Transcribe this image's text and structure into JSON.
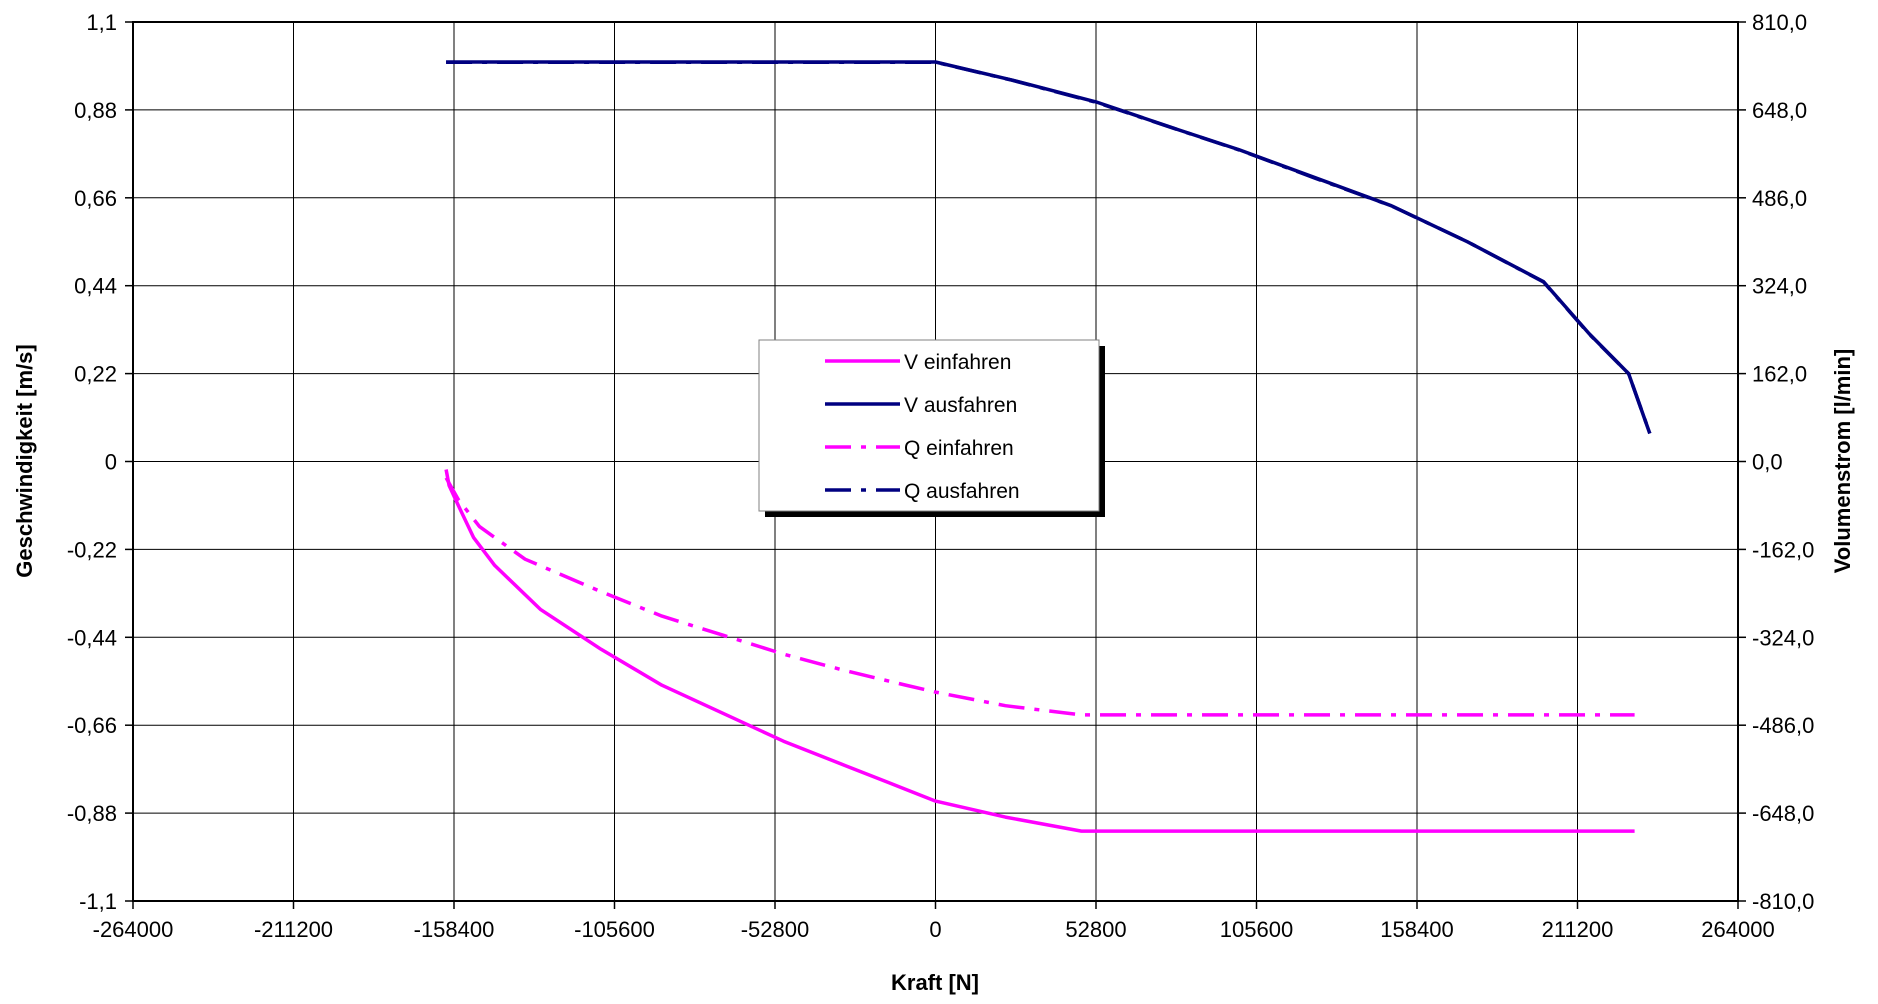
{
  "chart_data": {
    "type": "line",
    "xlabel": "Kraft [N]",
    "ylabel": "Geschwindigkeit [m/s]",
    "y2label": "Volumenstrom [l/min]",
    "xlim": [
      -264000,
      264000
    ],
    "ylim": [
      -1.1,
      1.1
    ],
    "y2lim": [
      -810,
      810
    ],
    "grid": true,
    "legend_position": "center",
    "x_ticks": [
      "-264000",
      "-211200",
      "-158400",
      "-105600",
      "-52800",
      "0",
      "52800",
      "105600",
      "158400",
      "211200",
      "264000"
    ],
    "y_ticks": [
      "1,1",
      "0,88",
      "0,66",
      "0,44",
      "0,22",
      "0",
      "-0,22",
      "-0,44",
      "-0,66",
      "-0,88",
      "-1,1"
    ],
    "y2_ticks": [
      "810,0",
      "648,0",
      "486,0",
      "324,0",
      "162,0",
      "0,0",
      "-162,0",
      "-324,0",
      "-486,0",
      "-648,0",
      "-810,0"
    ],
    "series": [
      {
        "name": "V einfahren",
        "axis": "left",
        "color": "#ff00ff",
        "style": "solid",
        "x": [
          -161000,
          -160000,
          -157000,
          -152000,
          -145000,
          -130000,
          -110000,
          -90000,
          -70000,
          -50000,
          -30000,
          -10000,
          0,
          23000,
          48000,
          70000,
          100000,
          140000,
          180000,
          220000,
          230000
        ],
        "y": [
          -0.02,
          -0.06,
          -0.11,
          -0.19,
          -0.26,
          -0.37,
          -0.47,
          -0.56,
          -0.63,
          -0.7,
          -0.76,
          -0.82,
          -0.85,
          -0.89,
          -0.925,
          -0.925,
          -0.925,
          -0.925,
          -0.925,
          -0.925,
          -0.925
        ]
      },
      {
        "name": "V ausfahren",
        "axis": "left",
        "color": "#000080",
        "style": "solid",
        "x": [
          -161000,
          -100000,
          -50000,
          0,
          25000,
          52800,
          80000,
          100000,
          125000,
          150000,
          175000,
          200000,
          215000,
          228000,
          235000
        ],
        "y": [
          1.0,
          1.0,
          1.0,
          1.0,
          0.955,
          0.9,
          0.83,
          0.78,
          0.71,
          0.64,
          0.55,
          0.45,
          0.32,
          0.22,
          0.07
        ]
      },
      {
        "name": "Q einfahren",
        "axis": "right",
        "color": "#ff00ff",
        "style": "dashdot",
        "x": [
          -161000,
          -157000,
          -150000,
          -135000,
          -110000,
          -90000,
          -70000,
          -50000,
          -30000,
          -10000,
          0,
          23000,
          48000,
          80000,
          120000,
          160000,
          200000,
          230000
        ],
        "y": [
          -30,
          -70,
          -120,
          -180,
          -240,
          -285,
          -320,
          -355,
          -385,
          -412,
          -425,
          -450,
          -467,
          -467,
          -467,
          -467,
          -467,
          -467
        ]
      },
      {
        "name": "Q ausfahren",
        "axis": "right",
        "color": "#000080",
        "style": "dashdot",
        "x": [
          -161000,
          -100000,
          -50000,
          0,
          25000,
          52800,
          80000,
          100000,
          125000,
          150000,
          175000,
          200000,
          215000,
          228000,
          235000
        ],
        "y": [
          736,
          736,
          736,
          736,
          703,
          662,
          611,
          574,
          522,
          471,
          405,
          331,
          235,
          162,
          52
        ]
      }
    ]
  }
}
